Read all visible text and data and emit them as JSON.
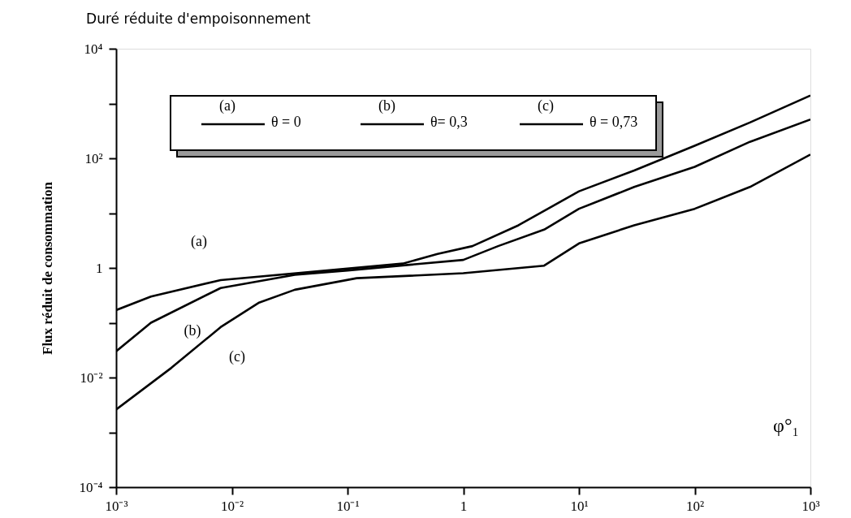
{
  "chart_data": {
    "type": "line",
    "title": "Duré réduite d'empoisonnement",
    "xlabel": "φ°₁",
    "ylabel": "Flux réduit de consommation",
    "log": "xy",
    "grid": false,
    "legend": "top left",
    "marker": "none",
    "line_style": "solid",
    "xlim": [
      0.001,
      1000
    ],
    "ylim": [
      0.0001,
      10000
    ],
    "xticks": [
      {
        "value": 0.001,
        "label": "10⁻³"
      },
      {
        "value": 0.01,
        "label": "10⁻²"
      },
      {
        "value": 0.1,
        "label": "10⁻¹"
      },
      1,
      {
        "value": 10,
        "label": "10¹"
      },
      {
        "value": 100,
        "label": "10²"
      },
      {
        "value": 1000,
        "label": "10³"
      }
    ],
    "yticks": [
      {
        "value": 0.0001,
        "label": "10⁻⁴"
      },
      {
        "value": 0.001,
        "label": null
      },
      {
        "value": 0.01,
        "label": "10⁻²"
      },
      {
        "value": 0.1,
        "label": null
      },
      1,
      {
        "value": 10,
        "label": null
      },
      {
        "value": 100,
        "label": "10²"
      },
      {
        "value": 1000,
        "label": null
      },
      {
        "value": 10000,
        "label": "10⁴"
      }
    ],
    "series": [
      {
        "name": "θ = 0",
        "color": "#000000",
        "x": [
          0.001,
          0.002,
          0.008,
          0.3,
          0.6,
          1.2,
          3,
          10,
          30,
          100,
          300,
          1000
        ],
        "values": [
          0.17,
          0.3,
          0.6,
          1.2,
          1.8,
          2.5,
          6,
          25,
          60,
          170,
          450,
          1400
        ]
      },
      {
        "name": "θ= 0,3",
        "color": "#000000",
        "x": [
          0.001,
          0.002,
          0.008,
          0.035,
          0.1,
          1,
          2,
          5,
          10,
          30,
          100,
          300,
          1000
        ],
        "values": [
          0.03,
          0.1,
          0.43,
          0.75,
          0.9,
          1.4,
          2.5,
          5,
          12,
          30,
          70,
          200,
          510
        ]
      },
      {
        "name": "θ = 0,73",
        "color": "#000000",
        "x": [
          0.001,
          0.003,
          0.008,
          0.017,
          0.035,
          0.12,
          1,
          5,
          10,
          30,
          100,
          300,
          1000
        ],
        "values": [
          0.0026,
          0.015,
          0.083,
          0.23,
          0.4,
          0.65,
          0.8,
          1.1,
          2.8,
          6,
          12,
          30,
          117
        ]
      }
    ],
    "annotations": [
      "(a)",
      "(b)",
      "(c)"
    ]
  }
}
